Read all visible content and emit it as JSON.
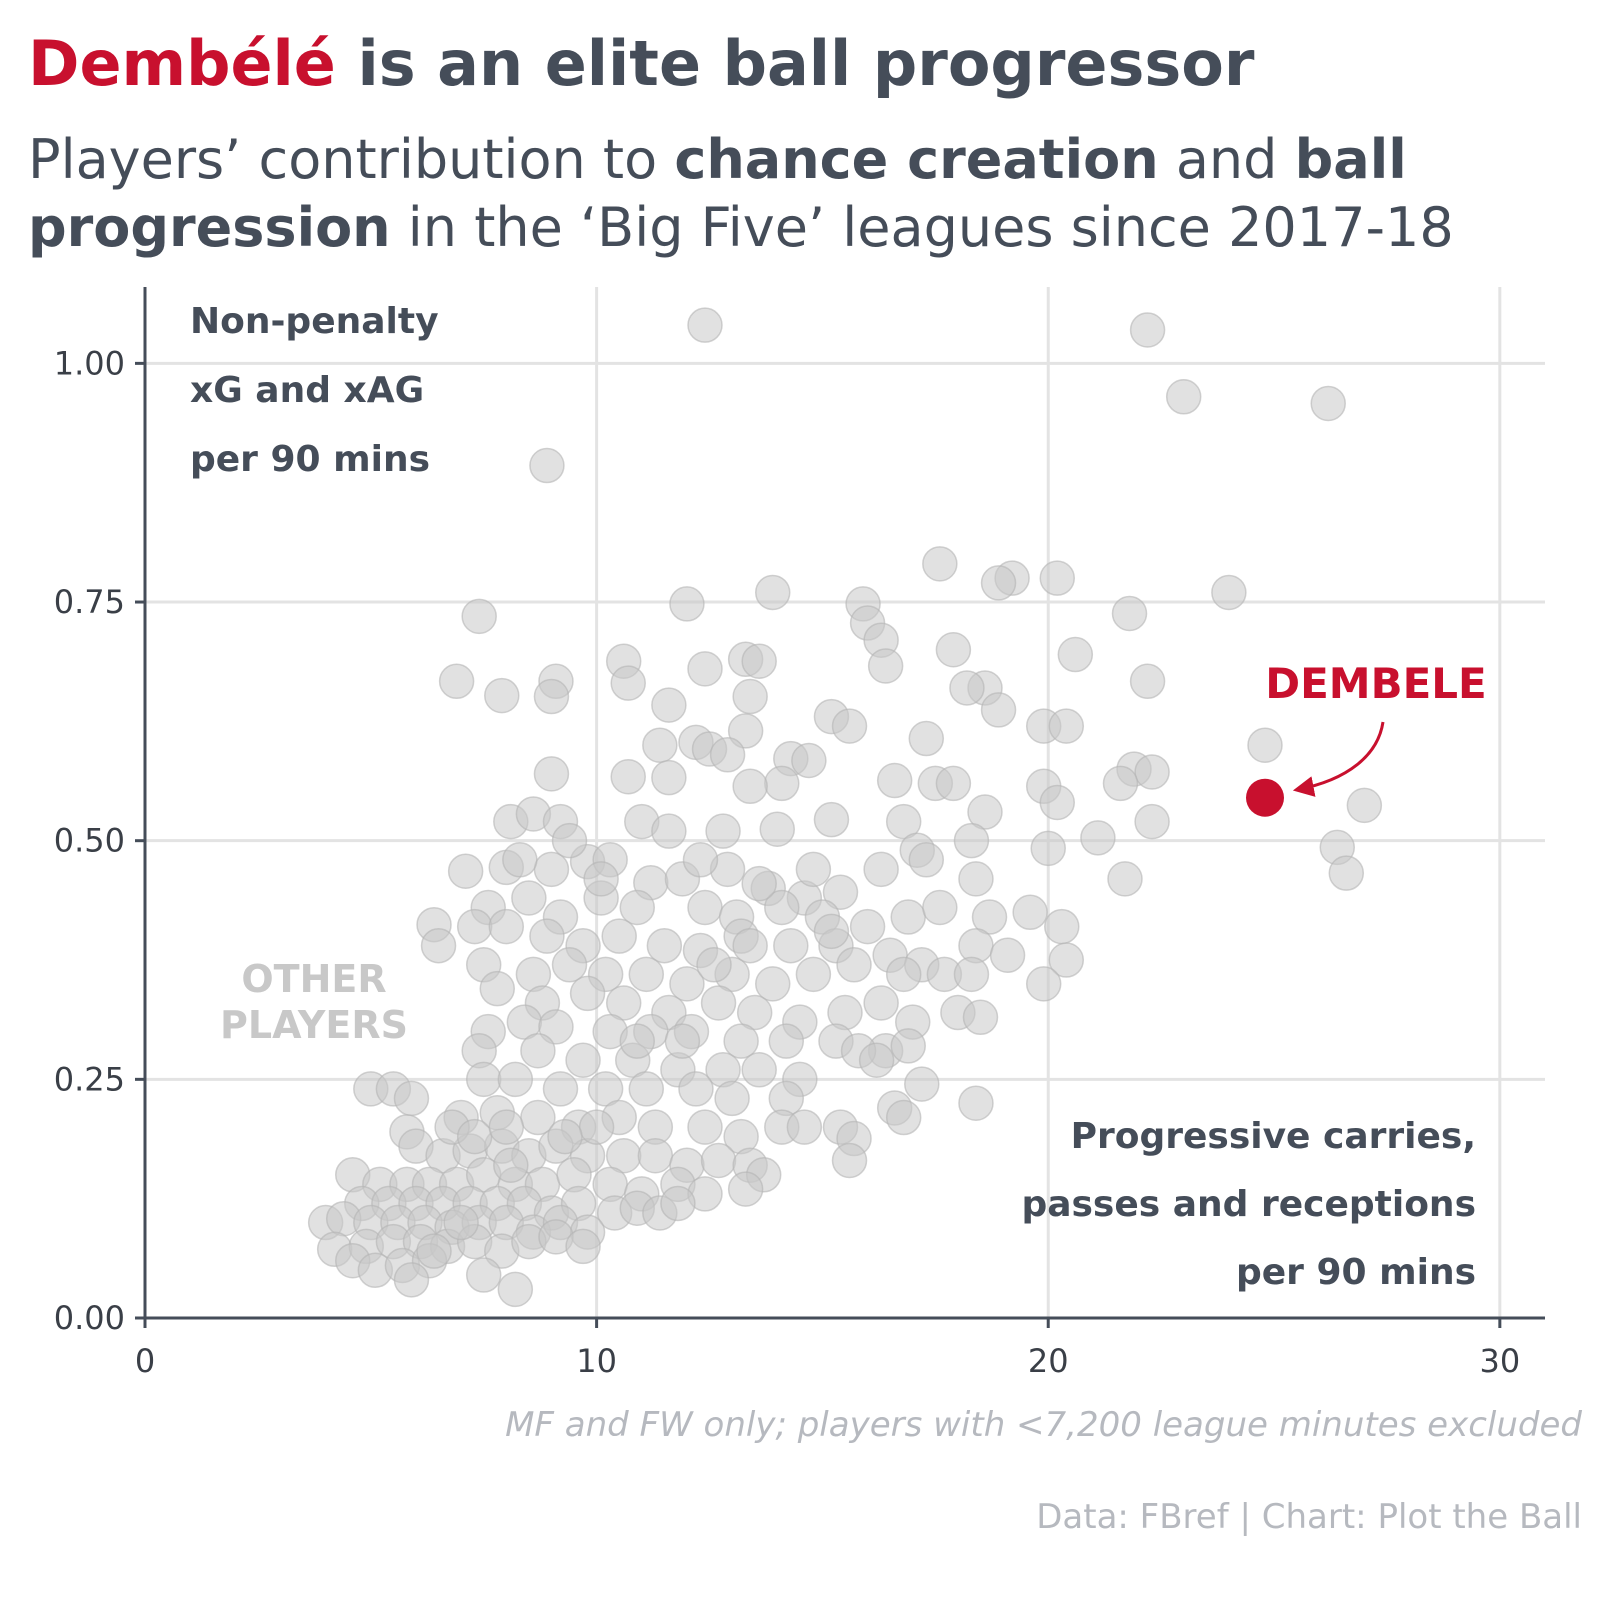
{
  "title": {
    "highlight": "Dembélé",
    "rest": " is an elite ball progressor"
  },
  "subtitle": {
    "p1": "Players’ contribution to ",
    "b1": "chance creation",
    "p2": " and ",
    "b2": "ball progression",
    "p3": " in the ‘Big Five’ leagues since 2017-18"
  },
  "notes": {
    "caveat": "MF and FW only; players with <7,200 league minutes excluded",
    "credit": "Data: FBref | Chart: Plot the Ball"
  },
  "colors": {
    "highlight": "#c8102e",
    "text": "#454d59",
    "points": "#c8c8c8",
    "muted": "#b6b9bf"
  },
  "chart_data": {
    "type": "scatter",
    "xlim": [
      0,
      31
    ],
    "ylim": [
      0,
      1.08
    ],
    "x_ticks": [
      0,
      10,
      20,
      30
    ],
    "x_tick_labels": [
      "0",
      "10",
      "20",
      "30"
    ],
    "y_ticks": [
      0,
      0.25,
      0.5,
      0.75,
      1.0
    ],
    "y_tick_labels": [
      "0.00",
      "0.25",
      "0.50",
      "0.75",
      "1.00"
    ],
    "grid": true,
    "ylabel_lines": [
      "Non-penalty",
      "xG and xAG",
      "per 90 mins"
    ],
    "xlabel_lines": [
      "Progressive carries,",
      "passes and receptions",
      "per 90 mins"
    ],
    "highlight": {
      "label": "DEMBELE",
      "x": 24.8,
      "y": 0.545
    },
    "others": {
      "label_lines": [
        "OTHER",
        "PLAYERS"
      ],
      "points": [
        [
          12.4,
          1.04
        ],
        [
          22.2,
          1.035
        ],
        [
          23.0,
          0.965
        ],
        [
          26.2,
          0.958
        ],
        [
          8.9,
          0.893
        ],
        [
          17.6,
          0.79
        ],
        [
          19.2,
          0.775
        ],
        [
          18.9,
          0.77
        ],
        [
          20.2,
          0.775
        ],
        [
          24.0,
          0.76
        ],
        [
          13.9,
          0.76
        ],
        [
          15.9,
          0.748
        ],
        [
          12.0,
          0.748
        ],
        [
          7.4,
          0.735
        ],
        [
          21.8,
          0.738
        ],
        [
          16.0,
          0.728
        ],
        [
          16.3,
          0.71
        ],
        [
          20.6,
          0.695
        ],
        [
          13.3,
          0.69
        ],
        [
          13.6,
          0.688
        ],
        [
          10.6,
          0.688
        ],
        [
          16.4,
          0.683
        ],
        [
          12.4,
          0.68
        ],
        [
          17.9,
          0.7
        ],
        [
          6.9,
          0.667
        ],
        [
          9.1,
          0.667
        ],
        [
          22.2,
          0.667
        ],
        [
          10.7,
          0.665
        ],
        [
          18.6,
          0.66
        ],
        [
          18.2,
          0.66
        ],
        [
          7.9,
          0.652
        ],
        [
          9.0,
          0.651
        ],
        [
          13.4,
          0.651
        ],
        [
          11.6,
          0.642
        ],
        [
          15.2,
          0.63
        ],
        [
          15.6,
          0.62
        ],
        [
          19.9,
          0.62
        ],
        [
          20.4,
          0.62
        ],
        [
          18.9,
          0.637
        ],
        [
          13.3,
          0.615
        ],
        [
          24.8,
          0.6
        ],
        [
          17.3,
          0.607
        ],
        [
          12.2,
          0.603
        ],
        [
          11.4,
          0.6
        ],
        [
          12.5,
          0.596
        ],
        [
          12.9,
          0.59
        ],
        [
          14.3,
          0.586
        ],
        [
          14.7,
          0.584
        ],
        [
          21.9,
          0.575
        ],
        [
          22.3,
          0.572
        ],
        [
          9.0,
          0.57
        ],
        [
          16.6,
          0.563
        ],
        [
          17.5,
          0.56
        ],
        [
          17.9,
          0.56
        ],
        [
          19.9,
          0.557
        ],
        [
          21.6,
          0.56
        ],
        [
          10.7,
          0.567
        ],
        [
          11.6,
          0.566
        ],
        [
          14.1,
          0.56
        ],
        [
          13.4,
          0.557
        ],
        [
          20.2,
          0.54
        ],
        [
          27.0,
          0.537
        ],
        [
          8.1,
          0.52
        ],
        [
          8.6,
          0.528
        ],
        [
          9.2,
          0.52
        ],
        [
          15.2,
          0.522
        ],
        [
          16.8,
          0.52
        ],
        [
          18.6,
          0.53
        ],
        [
          22.3,
          0.52
        ],
        [
          11.0,
          0.52
        ],
        [
          12.8,
          0.51
        ],
        [
          14.0,
          0.512
        ],
        [
          21.1,
          0.503
        ],
        [
          26.4,
          0.493
        ],
        [
          20.0,
          0.492
        ],
        [
          17.1,
          0.49
        ],
        [
          18.3,
          0.5
        ],
        [
          7.1,
          0.468
        ],
        [
          8.0,
          0.472
        ],
        [
          9.0,
          0.47
        ],
        [
          9.8,
          0.478
        ],
        [
          10.3,
          0.48
        ],
        [
          11.2,
          0.456
        ],
        [
          11.9,
          0.46
        ],
        [
          12.9,
          0.47
        ],
        [
          13.8,
          0.45
        ],
        [
          14.6,
          0.44
        ],
        [
          15.4,
          0.446
        ],
        [
          16.3,
          0.47
        ],
        [
          17.3,
          0.48
        ],
        [
          18.4,
          0.46
        ],
        [
          21.7,
          0.46
        ],
        [
          26.6,
          0.466
        ],
        [
          7.6,
          0.43
        ],
        [
          8.5,
          0.44
        ],
        [
          9.2,
          0.42
        ],
        [
          10.1,
          0.44
        ],
        [
          10.9,
          0.43
        ],
        [
          12.4,
          0.43
        ],
        [
          13.1,
          0.42
        ],
        [
          14.1,
          0.43
        ],
        [
          15.0,
          0.42
        ],
        [
          16.0,
          0.41
        ],
        [
          16.9,
          0.42
        ],
        [
          17.6,
          0.43
        ],
        [
          18.7,
          0.42
        ],
        [
          19.6,
          0.425
        ],
        [
          20.3,
          0.41
        ],
        [
          6.4,
          0.412
        ],
        [
          7.3,
          0.41
        ],
        [
          8.0,
          0.41
        ],
        [
          8.9,
          0.4
        ],
        [
          9.7,
          0.39
        ],
        [
          10.5,
          0.4
        ],
        [
          11.5,
          0.39
        ],
        [
          12.3,
          0.385
        ],
        [
          13.2,
          0.4
        ],
        [
          14.3,
          0.39
        ],
        [
          15.3,
          0.39
        ],
        [
          16.5,
          0.38
        ],
        [
          17.2,
          0.37
        ],
        [
          18.4,
          0.39
        ],
        [
          19.1,
          0.38
        ],
        [
          20.4,
          0.375
        ],
        [
          6.5,
          0.39
        ],
        [
          7.5,
          0.37
        ],
        [
          8.6,
          0.36
        ],
        [
          9.4,
          0.37
        ],
        [
          10.2,
          0.36
        ],
        [
          11.1,
          0.36
        ],
        [
          12.0,
          0.35
        ],
        [
          13.0,
          0.36
        ],
        [
          13.9,
          0.35
        ],
        [
          14.8,
          0.36
        ],
        [
          15.7,
          0.37
        ],
        [
          16.8,
          0.36
        ],
        [
          17.7,
          0.36
        ],
        [
          18.3,
          0.36
        ],
        [
          19.9,
          0.35
        ],
        [
          7.8,
          0.345
        ],
        [
          8.8,
          0.33
        ],
        [
          9.8,
          0.34
        ],
        [
          10.6,
          0.33
        ],
        [
          11.6,
          0.32
        ],
        [
          12.7,
          0.33
        ],
        [
          13.5,
          0.32
        ],
        [
          14.5,
          0.31
        ],
        [
          15.5,
          0.32
        ],
        [
          16.3,
          0.33
        ],
        [
          17.0,
          0.31
        ],
        [
          18.0,
          0.32
        ],
        [
          18.5,
          0.315
        ],
        [
          8.4,
          0.31
        ],
        [
          9.1,
          0.305
        ],
        [
          10.3,
          0.3
        ],
        [
          11.2,
          0.3
        ],
        [
          12.1,
          0.3
        ],
        [
          13.2,
          0.29
        ],
        [
          14.2,
          0.29
        ],
        [
          15.3,
          0.29
        ],
        [
          16.4,
          0.28
        ],
        [
          16.9,
          0.285
        ],
        [
          7.6,
          0.3
        ],
        [
          7.4,
          0.28
        ],
        [
          8.7,
          0.28
        ],
        [
          9.7,
          0.27
        ],
        [
          10.8,
          0.27
        ],
        [
          11.8,
          0.26
        ],
        [
          12.8,
          0.26
        ],
        [
          13.6,
          0.26
        ],
        [
          14.5,
          0.25
        ],
        [
          15.8,
          0.28
        ],
        [
          16.2,
          0.27
        ],
        [
          7.5,
          0.25
        ],
        [
          8.2,
          0.25
        ],
        [
          9.2,
          0.24
        ],
        [
          10.2,
          0.24
        ],
        [
          11.1,
          0.24
        ],
        [
          12.2,
          0.24
        ],
        [
          13.0,
          0.23
        ],
        [
          14.2,
          0.23
        ],
        [
          5.0,
          0.24
        ],
        [
          5.5,
          0.24
        ],
        [
          5.9,
          0.23
        ],
        [
          16.6,
          0.22
        ],
        [
          17.2,
          0.245
        ],
        [
          16.8,
          0.21
        ],
        [
          18.4,
          0.225
        ],
        [
          7.0,
          0.21
        ],
        [
          7.8,
          0.215
        ],
        [
          8.7,
          0.21
        ],
        [
          9.6,
          0.2
        ],
        [
          10.5,
          0.21
        ],
        [
          11.3,
          0.2
        ],
        [
          12.4,
          0.2
        ],
        [
          13.2,
          0.19
        ],
        [
          14.1,
          0.2
        ],
        [
          14.6,
          0.2
        ],
        [
          15.4,
          0.2
        ],
        [
          15.7,
          0.188
        ],
        [
          15.6,
          0.165
        ],
        [
          5.8,
          0.195
        ],
        [
          6.0,
          0.18
        ],
        [
          6.6,
          0.17
        ],
        [
          7.2,
          0.175
        ],
        [
          7.9,
          0.18
        ],
        [
          8.5,
          0.17
        ],
        [
          9.1,
          0.18
        ],
        [
          9.8,
          0.17
        ],
        [
          10.6,
          0.17
        ],
        [
          11.3,
          0.17
        ],
        [
          12.0,
          0.16
        ],
        [
          12.7,
          0.165
        ],
        [
          13.4,
          0.16
        ],
        [
          13.7,
          0.15
        ],
        [
          4.6,
          0.15
        ],
        [
          5.2,
          0.14
        ],
        [
          5.8,
          0.14
        ],
        [
          6.3,
          0.14
        ],
        [
          6.9,
          0.14
        ],
        [
          7.5,
          0.15
        ],
        [
          8.2,
          0.14
        ],
        [
          8.8,
          0.14
        ],
        [
          9.5,
          0.15
        ],
        [
          10.3,
          0.14
        ],
        [
          11.0,
          0.13
        ],
        [
          11.8,
          0.14
        ],
        [
          12.4,
          0.13
        ],
        [
          13.3,
          0.135
        ],
        [
          4.8,
          0.12
        ],
        [
          5.4,
          0.12
        ],
        [
          6.0,
          0.12
        ],
        [
          6.6,
          0.12
        ],
        [
          7.2,
          0.12
        ],
        [
          7.8,
          0.12
        ],
        [
          8.4,
          0.12
        ],
        [
          9.0,
          0.11
        ],
        [
          9.6,
          0.12
        ],
        [
          10.4,
          0.11
        ],
        [
          10.9,
          0.115
        ],
        [
          11.4,
          0.11
        ],
        [
          11.8,
          0.12
        ],
        [
          4.0,
          0.1
        ],
        [
          4.4,
          0.104
        ],
        [
          5.0,
          0.1
        ],
        [
          5.6,
          0.1
        ],
        [
          6.2,
          0.1
        ],
        [
          6.8,
          0.095
        ],
        [
          7.4,
          0.1
        ],
        [
          8.0,
          0.1
        ],
        [
          8.6,
          0.09
        ],
        [
          9.2,
          0.1
        ],
        [
          9.8,
          0.09
        ],
        [
          4.2,
          0.072
        ],
        [
          4.9,
          0.075
        ],
        [
          5.5,
          0.08
        ],
        [
          6.1,
          0.08
        ],
        [
          6.7,
          0.075
        ],
        [
          7.3,
          0.08
        ],
        [
          7.9,
          0.07
        ],
        [
          8.5,
          0.08
        ],
        [
          9.1,
          0.085
        ],
        [
          9.7,
          0.075
        ],
        [
          4.6,
          0.06
        ],
        [
          5.1,
          0.05
        ],
        [
          5.7,
          0.055
        ],
        [
          6.3,
          0.06
        ],
        [
          7.5,
          0.045
        ],
        [
          5.9,
          0.04
        ],
        [
          8.2,
          0.03
        ],
        [
          12.3,
          0.48
        ],
        [
          11.6,
          0.51
        ],
        [
          10.1,
          0.46
        ],
        [
          9.4,
          0.5
        ],
        [
          8.3,
          0.48
        ],
        [
          14.8,
          0.47
        ],
        [
          13.6,
          0.455
        ],
        [
          15.2,
          0.405
        ],
        [
          13.4,
          0.39
        ],
        [
          12.6,
          0.37
        ],
        [
          11.9,
          0.29
        ],
        [
          10.9,
          0.29
        ],
        [
          10.0,
          0.2
        ],
        [
          9.3,
          0.19
        ],
        [
          8.1,
          0.16
        ],
        [
          7.0,
          0.1
        ],
        [
          6.4,
          0.07
        ],
        [
          6.8,
          0.2
        ],
        [
          7.3,
          0.19
        ],
        [
          8.0,
          0.2
        ]
      ]
    }
  }
}
